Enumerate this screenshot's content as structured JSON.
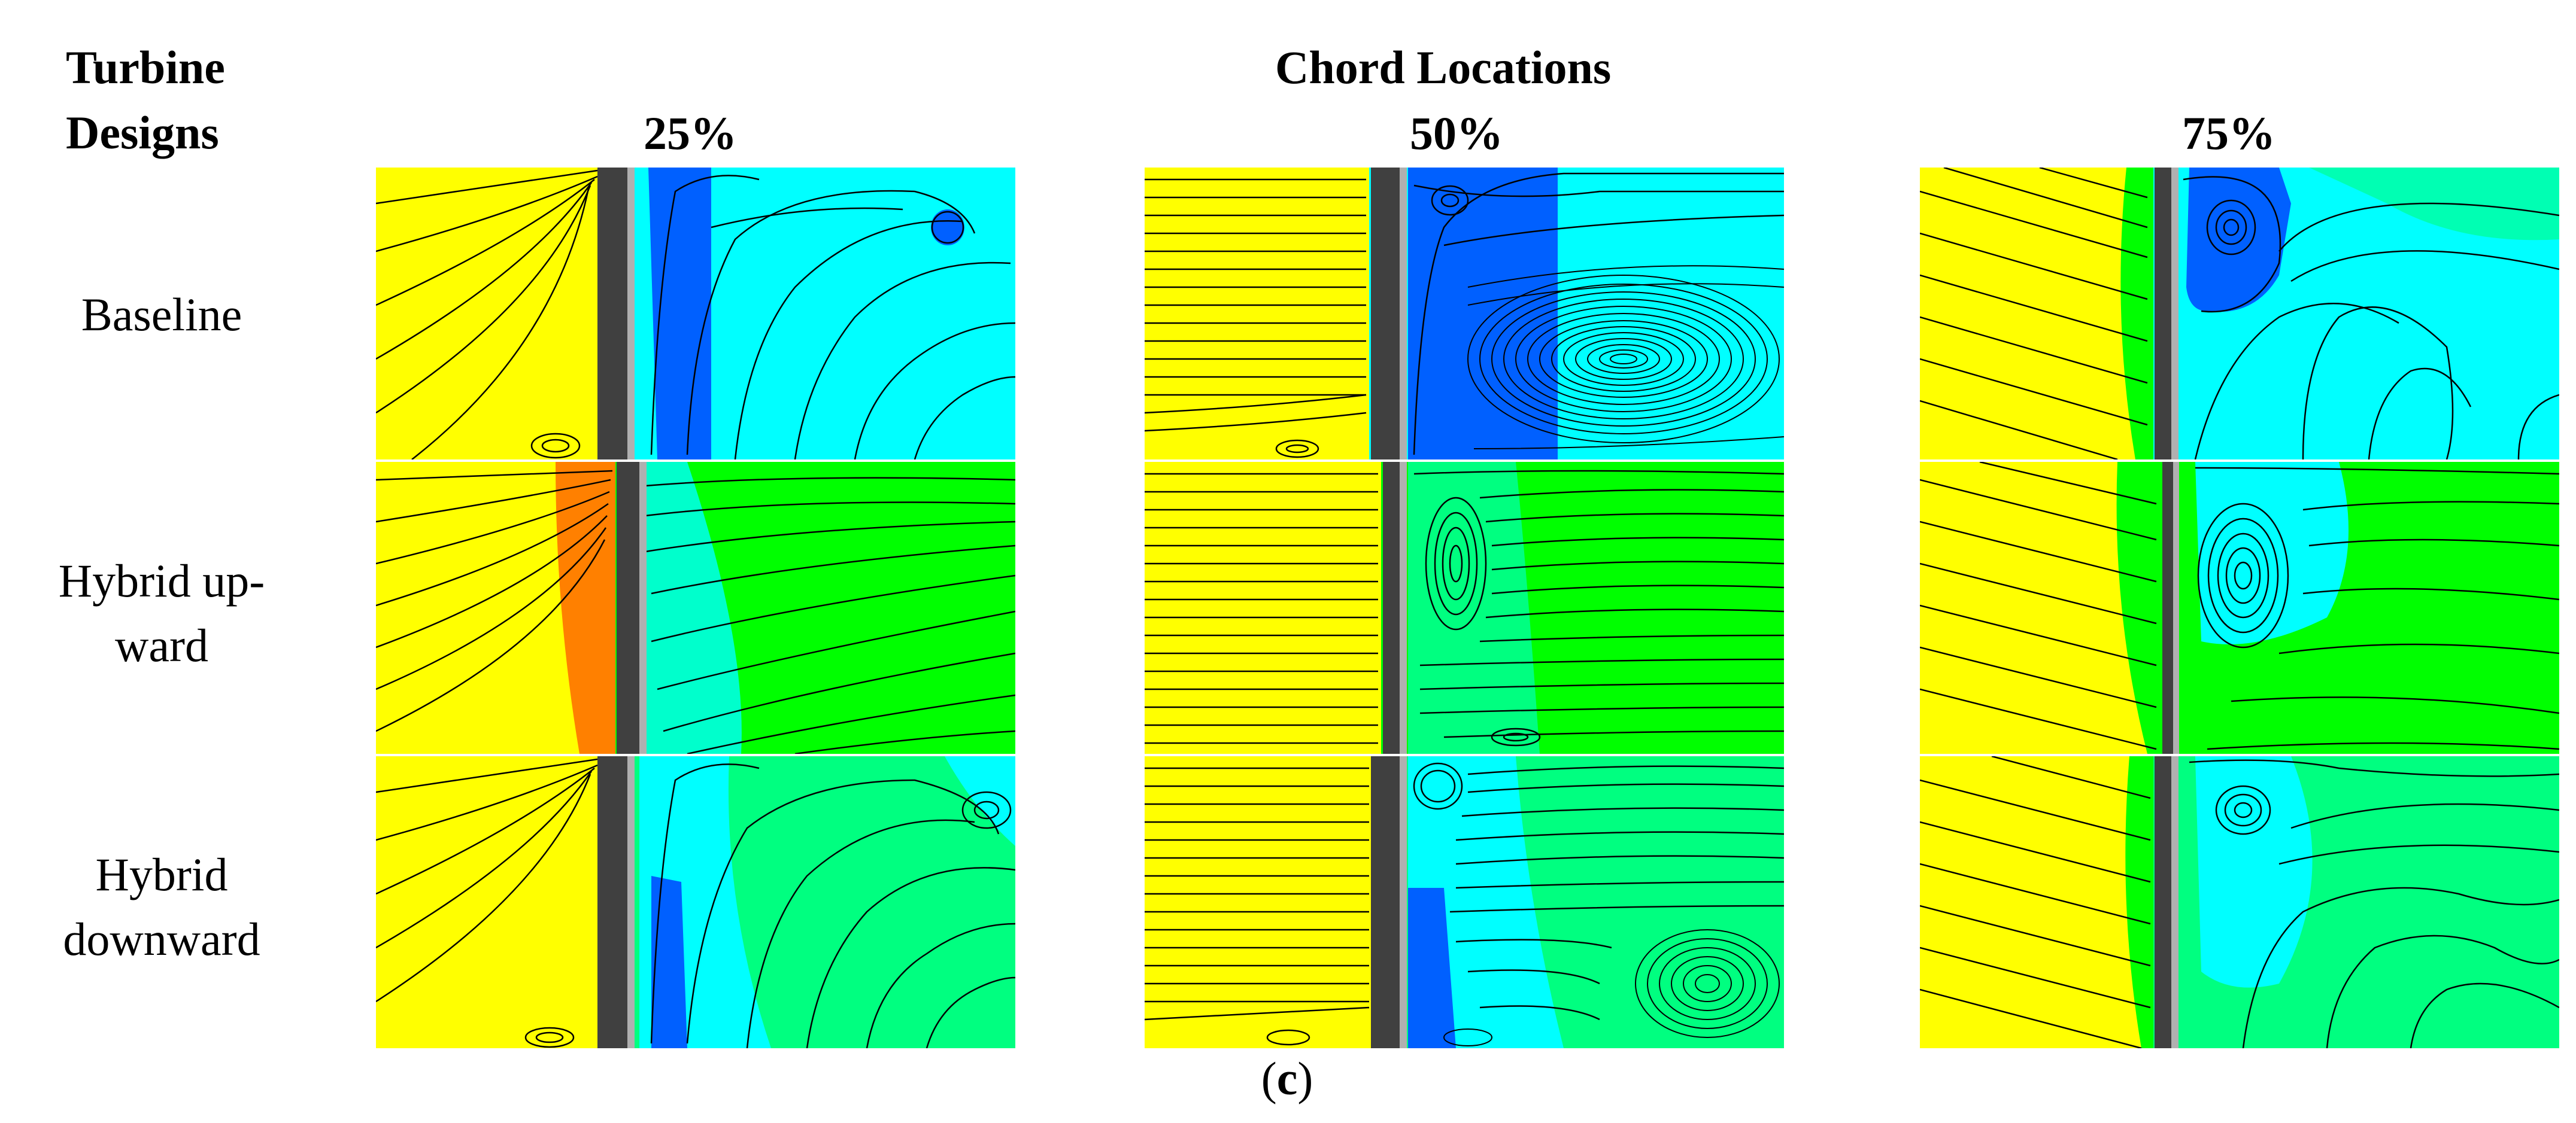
{
  "header": {
    "designs_label_line1": "Turbine",
    "designs_label_line2": "Designs",
    "chord_title": "Chord Locations",
    "columns": [
      "25%",
      "50%",
      "75%"
    ]
  },
  "rows": [
    {
      "label_line1": "Baseline",
      "label_line2": ""
    },
    {
      "label_line1": "Hybrid up-",
      "label_line2": "ward"
    },
    {
      "label_line1": "Hybrid",
      "label_line2": "downward"
    }
  ],
  "caption": {
    "pre": "(",
    "letter": "c",
    "post": ")"
  },
  "colors": {
    "yellow": "#ffff00",
    "orange": "#ff8000",
    "green": "#00ff00",
    "spring_green": "#00ff80",
    "cyan": "#00ffff",
    "blue": "#0060ff",
    "blade_dark": "#404040",
    "blade_light": "#b0b0b0"
  }
}
